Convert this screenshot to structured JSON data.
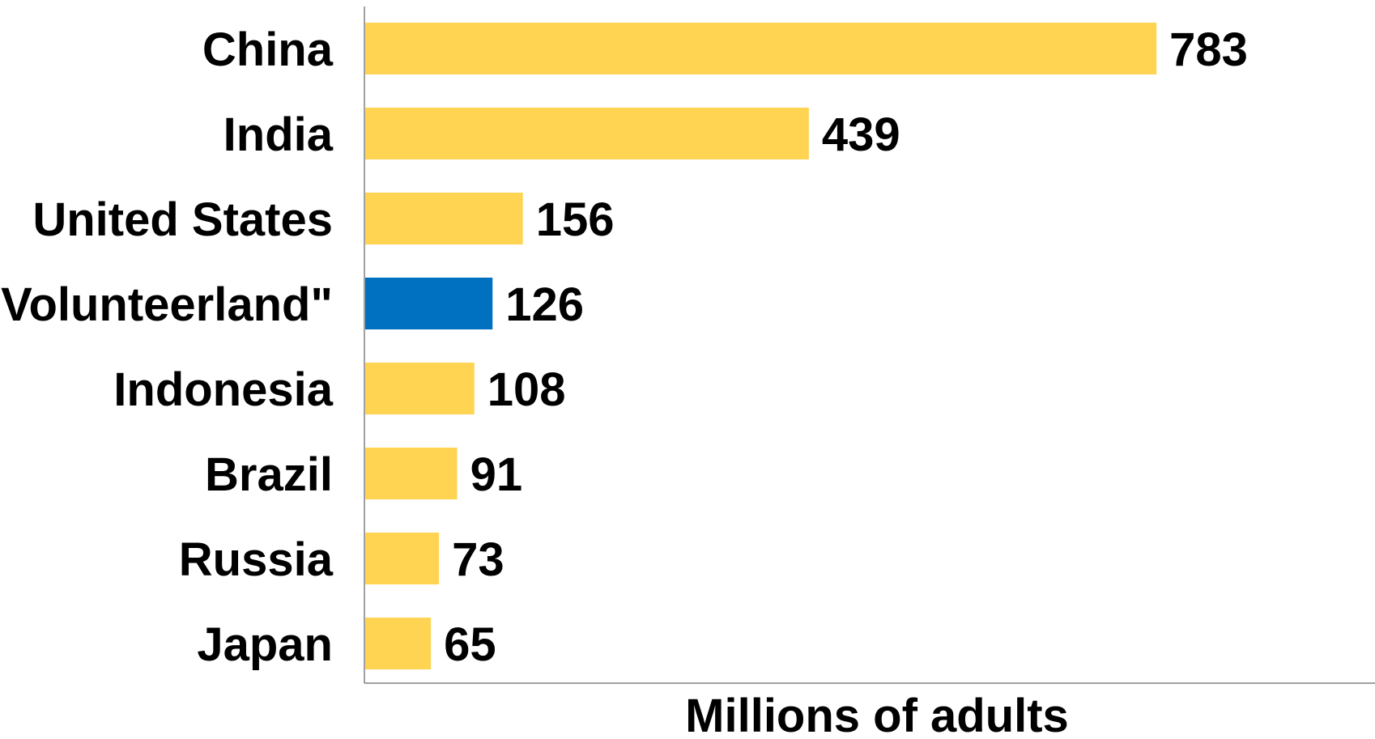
{
  "chart_data": {
    "type": "bar",
    "orientation": "horizontal",
    "categories": [
      "China",
      "India",
      "United States",
      "\"Volunteerland\"",
      "Indonesia",
      "Brazil",
      "Russia",
      "Japan"
    ],
    "values": [
      783,
      439,
      156,
      126,
      108,
      91,
      73,
      65
    ],
    "highlight_index": 3,
    "colors": {
      "default_bar": "#FFD452",
      "highlight_bar": "#0070C0",
      "axis": "#808080",
      "text": "#000000"
    },
    "xlabel": "Millions of adults",
    "ylabel": "",
    "xlim": [
      0,
      1000
    ],
    "grid": false,
    "legend": "none",
    "data_labels": true
  }
}
